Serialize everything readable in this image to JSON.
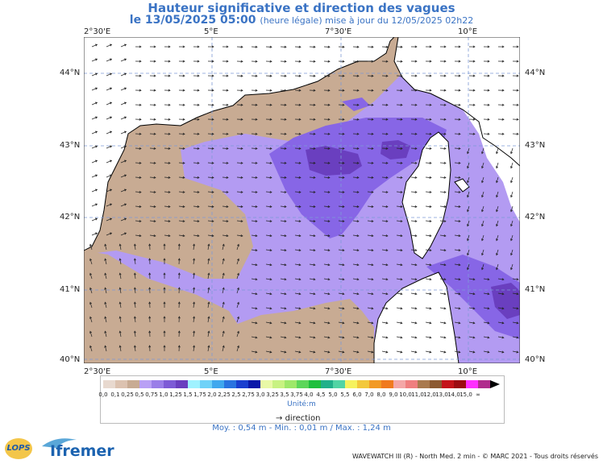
{
  "header": {
    "title": "Hauteur significative et direction des vagues",
    "date": "le 13/05/2025 05:00",
    "update_note": "(heure légale) mise à jour du 12/05/2025 02h22"
  },
  "axes": {
    "lon_labels": [
      "2°30'E",
      "5°E",
      "7°30'E",
      "10°E"
    ],
    "lat_labels": [
      "44°N",
      "43°N",
      "42°N",
      "41°N",
      "40°N"
    ]
  },
  "legend": {
    "values": [
      "0,0",
      "0,1",
      "0,25",
      "0,5",
      "0,75",
      "1,0",
      "1,25",
      "1,5",
      "1,75",
      "2,0",
      "2,25",
      "2,5",
      "2,75",
      "3,0",
      "3,25",
      "3,5",
      "3,75",
      "4,0",
      "4,5",
      "5,0",
      "5,5",
      "6,0",
      "7,0",
      "8,0",
      "9,0",
      "10,0",
      "11,0",
      "12,0",
      "13,0",
      "14,0",
      "15,0",
      "∞"
    ],
    "colors": [
      "#e8d9cf",
      "#dcc2b0",
      "#c8ab93",
      "#b9a0f5",
      "#9a7ee8",
      "#7d5bd6",
      "#6a3fbf",
      "#9ff2ff",
      "#6fd2f8",
      "#40a8ee",
      "#2a74e0",
      "#1a3fcf",
      "#0a18a8",
      "#e9f9a7",
      "#c8f282",
      "#9ee86a",
      "#5cd65a",
      "#1fbf3e",
      "#22b08a",
      "#52d4a4",
      "#f6f25e",
      "#f3c83b",
      "#f29a25",
      "#f07a1f",
      "#f4a7a7",
      "#ef7f7f",
      "#a97a4e",
      "#8c5a32",
      "#c4141a",
      "#9c0c12",
      "#ff30ff",
      "#b02d8d"
    ],
    "unit": "Unité:m",
    "direction_label": "direction"
  },
  "stats": "Moy. : 0,54 m  -  Min. : 0,01 m / Max. : 1,24 m",
  "credit": "WAVEWATCH III (R) - North Med. 2 min - © MARC 2021 - Tous droits réservés",
  "logos": {
    "lops": "LOPS",
    "ifremer": "Ifremer"
  }
}
